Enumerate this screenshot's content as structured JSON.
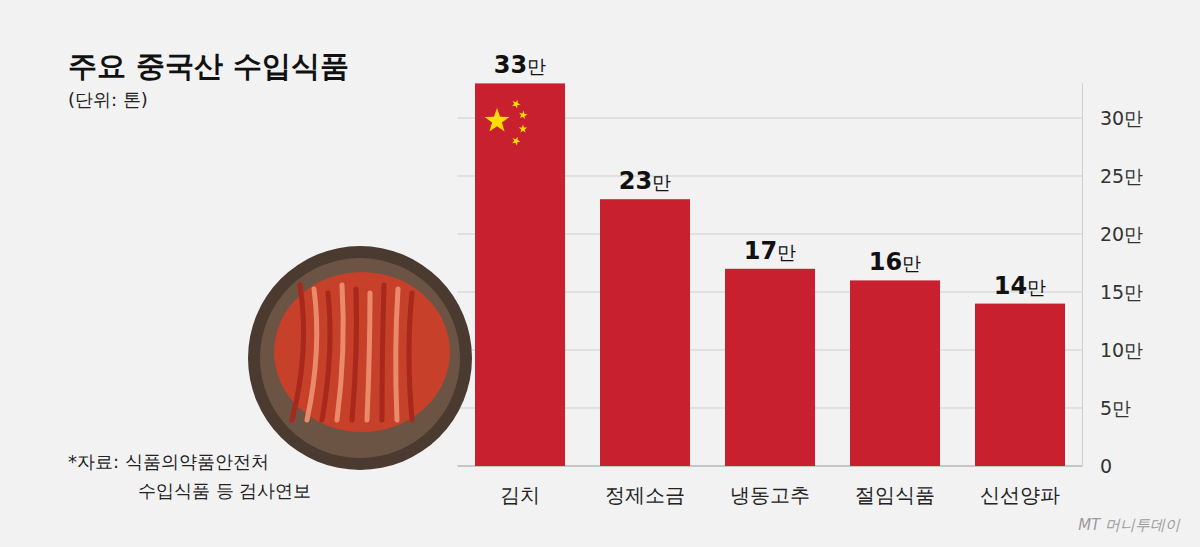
{
  "chart_data": {
    "type": "bar",
    "title": "주요 중국산 수입식품",
    "subtitle": "(단위: 톤)",
    "categories": [
      "김치",
      "정제소금",
      "냉동고추",
      "절임식품",
      "신선양파"
    ],
    "values": [
      330000,
      230000,
      170000,
      160000,
      140000
    ],
    "value_labels": [
      "33만",
      "23만",
      "17만",
      "16만",
      "14만"
    ],
    "color": "#c8202f",
    "ylim": [
      0,
      330000
    ],
    "yticks": [
      0,
      {
        "value": 50000,
        "label": "5만"
      },
      {
        "value": 100000,
        "label": "10만"
      },
      {
        "value": 150000,
        "label": "15만"
      },
      {
        "value": 200000,
        "label": "20만"
      },
      {
        "value": 250000,
        "label": "25만"
      },
      {
        "value": 300000,
        "label": "30만"
      }
    ],
    "grid": true,
    "data_labels": true,
    "source": [
      "*자료: 식품의약품안전처",
      "수입식품 등 검사연보"
    ],
    "credit": "MT 머니투데이"
  }
}
